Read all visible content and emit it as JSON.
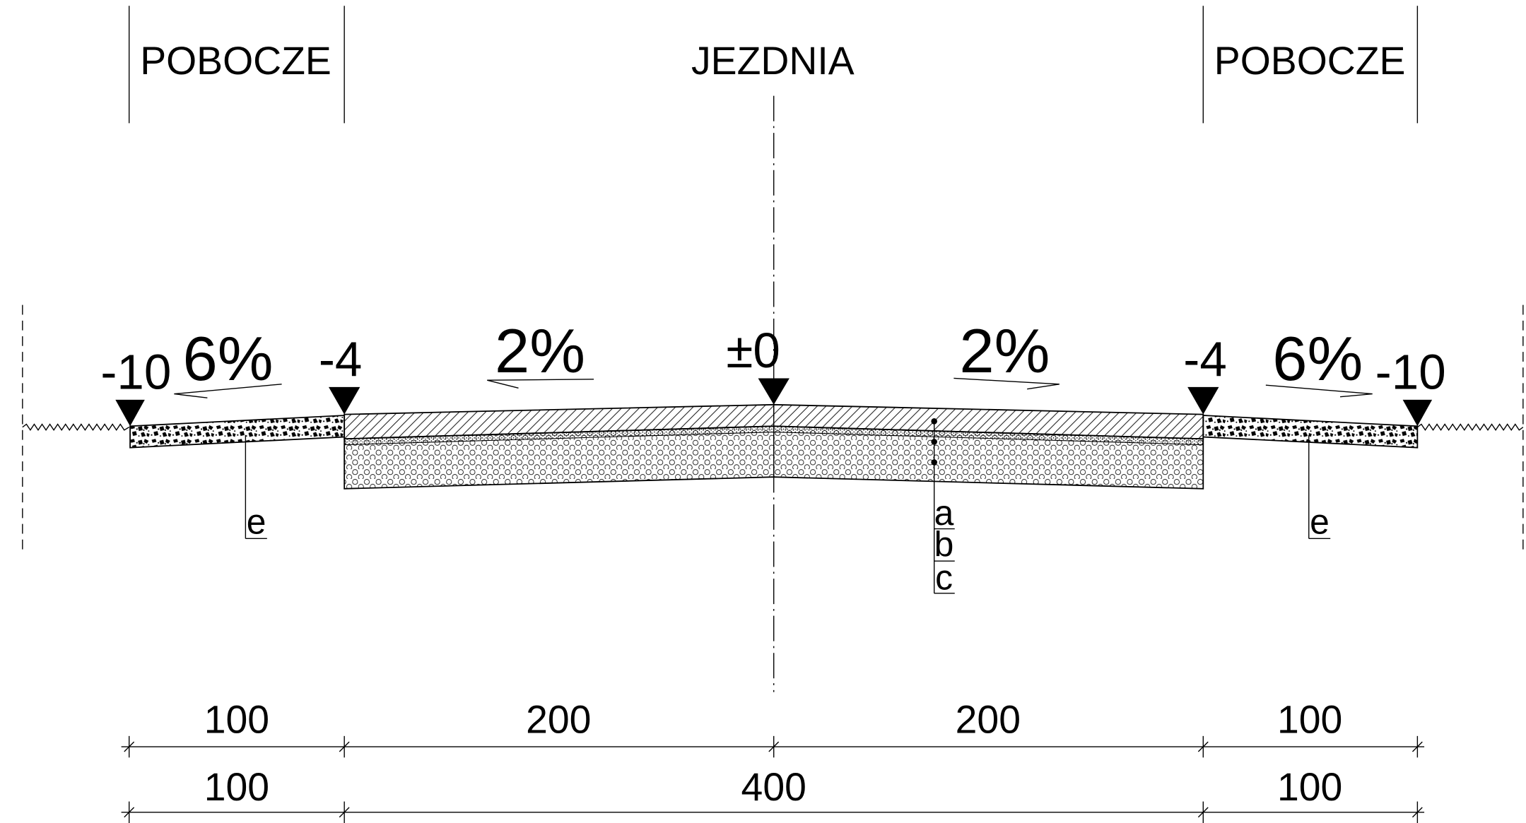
{
  "zones": {
    "left_shoulder": "POBOCZE",
    "carriageway": "JEZDNIA",
    "right_shoulder": "POBOCZE"
  },
  "elevations": {
    "left_edge": "-10",
    "left_inner": "-4",
    "axis": "±0",
    "right_inner": "-4",
    "right_edge": "-10"
  },
  "slopes": {
    "left_shoulder": "6%",
    "left_carriageway": "2%",
    "right_carriageway": "2%",
    "right_shoulder": "6%"
  },
  "layer_labels": {
    "shoulder_left": "e",
    "shoulder_right": "e",
    "layers": [
      "a",
      "b",
      "c"
    ]
  },
  "dimensions": {
    "row1": [
      "100",
      "200",
      "200",
      "100"
    ],
    "row2": [
      "100",
      "400",
      "100"
    ]
  },
  "colors": {
    "line": "#000000",
    "background": "#ffffff"
  }
}
